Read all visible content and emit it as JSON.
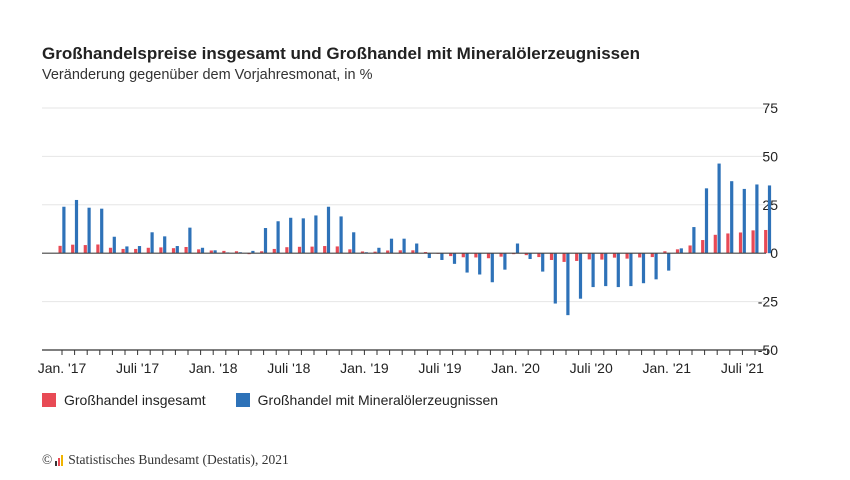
{
  "chart_data": {
    "type": "bar",
    "title": "Großhandelspreise insgesamt und Großhandel mit Mineralölerzeugnissen",
    "subtitle": "Veränderung gegenüber dem Vorjahresmonat, in %",
    "ylim": [
      -50,
      75
    ],
    "yticks": [
      -50,
      -25,
      0,
      25,
      50,
      75
    ],
    "tick_labels": [
      "Jan. '17",
      "Juli '17",
      "Jan. '18",
      "Juli '18",
      "Jan. '19",
      "Juli '19",
      "Jan. '20",
      "Juli '20",
      "Jan. '21",
      "Juli '21"
    ],
    "tick_label_months": [
      0,
      6,
      12,
      18,
      24,
      30,
      36,
      42,
      48,
      54
    ],
    "months": 57,
    "series": [
      {
        "name": "Großhandel insgesamt",
        "color": "#e84a55",
        "values": [
          3.8,
          4.4,
          4.2,
          4.5,
          2.8,
          2.2,
          2.2,
          2.8,
          3.0,
          2.6,
          3.2,
          2.0,
          1.4,
          1.2,
          1.0,
          -0.5,
          1.0,
          2.2,
          3.1,
          3.3,
          3.4,
          3.7,
          3.5,
          2.0,
          0.9,
          0.8,
          1.4,
          1.5,
          1.5,
          0.6,
          -0.2,
          -1.5,
          -2.1,
          -2.2,
          -2.6,
          -1.8,
          -0.5,
          -1.0,
          -2.0,
          -3.5,
          -4.5,
          -4.0,
          -3.2,
          -3.3,
          -2.3,
          -2.8,
          -2.2,
          -2.0,
          1.0,
          2.0,
          4.0,
          6.8,
          9.5,
          10.2,
          10.7,
          11.8,
          12.0
        ]
      },
      {
        "name": "Großhandel mit Mineralölerzeugnissen",
        "color": "#2e72b8",
        "values": [
          24.0,
          27.5,
          23.5,
          23.0,
          8.5,
          3.5,
          3.7,
          10.8,
          8.7,
          3.7,
          13.2,
          2.8,
          1.5,
          0.4,
          0.5,
          1.2,
          13.0,
          16.5,
          18.3,
          18.0,
          19.5,
          24.0,
          19.0,
          10.8,
          0.5,
          2.8,
          7.5,
          7.5,
          5.0,
          -2.5,
          -3.5,
          -5.5,
          -10.0,
          -11.0,
          -15.0,
          -8.5,
          5.0,
          -3.0,
          -9.5,
          -26.0,
          -32.0,
          -23.5,
          -17.5,
          -17.0,
          -17.5,
          -17.0,
          -15.5,
          -13.5,
          -9.0,
          2.5,
          13.5,
          33.5,
          46.3,
          37.2,
          33.2,
          35.5,
          35.0
        ]
      }
    ]
  },
  "legend": {
    "series1": "Großhandel insgesamt",
    "series2": "Großhandel mit Mineralölerzeugnissen"
  },
  "footer": {
    "copyright_symbol": "©",
    "source": "Statistisches Bundesamt (Destatis), 2021"
  }
}
